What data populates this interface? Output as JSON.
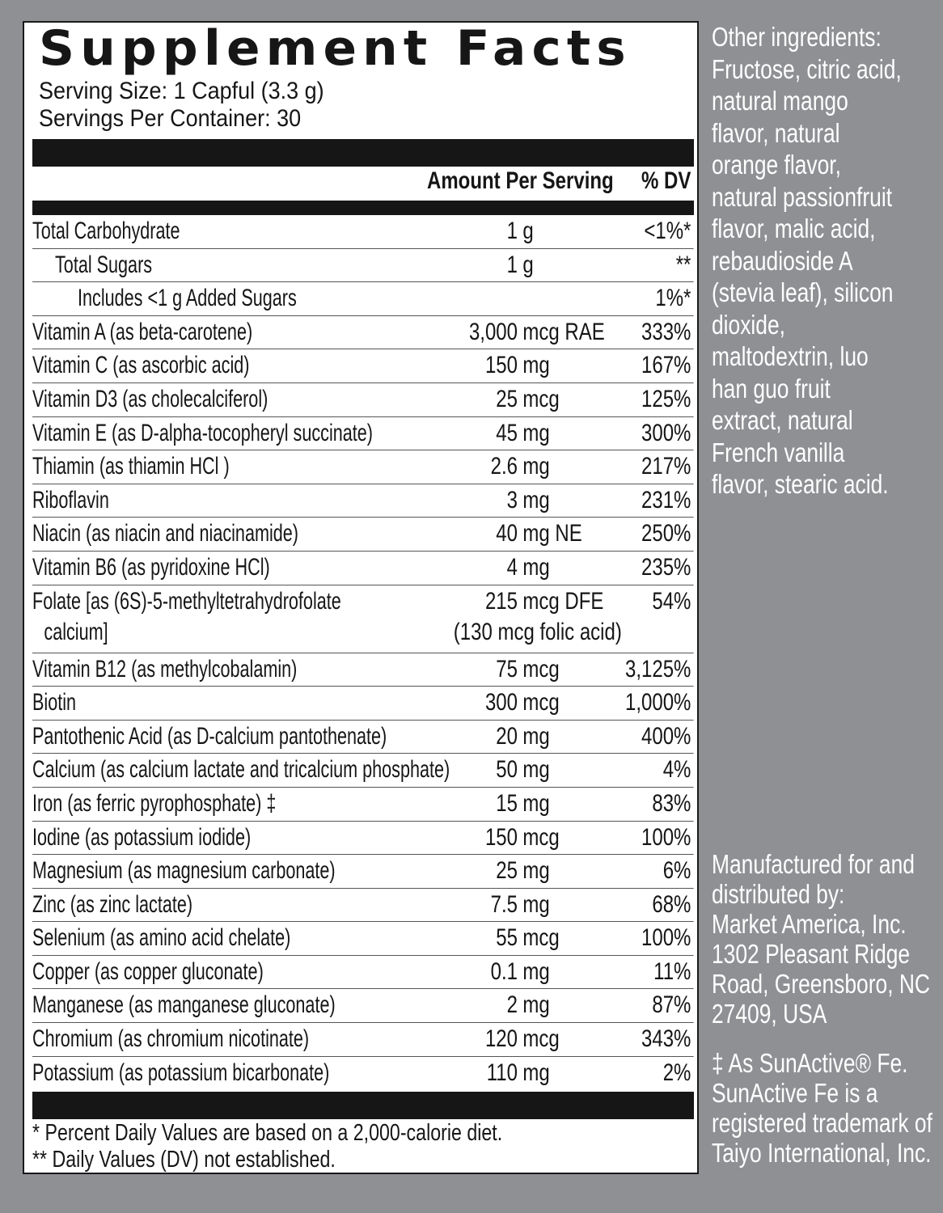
{
  "label": {
    "title": "Supplement Facts",
    "serving_size": "Serving Size: 1 Capful (3.3 g)",
    "servings_per_container": "Servings Per Container: 30",
    "header_amount": "Amount Per Serving",
    "header_dv": "% DV",
    "rows": [
      {
        "name": "Total Carbohydrate",
        "amount": "1 g",
        "dv": "<1%*",
        "indent": 0
      },
      {
        "name": "Total Sugars",
        "amount": "1 g",
        "dv": "**",
        "indent": 1
      },
      {
        "name": "Includes <1 g Added Sugars",
        "amount": "",
        "dv": "1%*",
        "indent": 2
      },
      {
        "name": "Vitamin A (as beta-carotene)",
        "amount": "3,000 mcg RAE",
        "dv": "333%",
        "indent": 0
      },
      {
        "name": "Vitamin C (as ascorbic acid)",
        "amount": "150 mg",
        "dv": "167%",
        "indent": 0
      },
      {
        "name": "Vitamin D3 (as cholecalciferol)",
        "amount": "25 mcg",
        "dv": "125%",
        "indent": 0
      },
      {
        "name": "Vitamin E (as D-alpha-tocopheryl succinate)",
        "amount": "45 mg",
        "dv": "300%",
        "indent": 0
      },
      {
        "name": "Thiamin (as thiamin HCl )",
        "amount": "2.6 mg",
        "dv": "217%",
        "indent": 0
      },
      {
        "name": "Riboflavin",
        "amount": "3 mg",
        "dv": "231%",
        "indent": 0
      },
      {
        "name": "Niacin (as niacin and niacinamide)",
        "amount": "40 mg NE",
        "dv": "250%",
        "indent": 0
      },
      {
        "name": "Vitamin B6 (as pyridoxine HCl)",
        "amount": "4 mg",
        "dv": "235%",
        "indent": 0
      },
      {
        "name": "Folate [as (6S)-5-methyltetrahydrofolate",
        "name2": "calcium]",
        "amount": "215 mcg DFE",
        "amount_note": "(130 mcg folic acid)",
        "dv": "54%",
        "indent": 0
      },
      {
        "name": "Vitamin B12 (as methylcobalamin)",
        "amount": "75 mcg",
        "dv": "3,125%",
        "indent": 0
      },
      {
        "name": "Biotin",
        "amount": "300 mcg",
        "dv": "1,000%",
        "indent": 0
      },
      {
        "name": "Pantothenic Acid (as D-calcium pantothenate)",
        "amount": "20 mg",
        "dv": "400%",
        "indent": 0
      },
      {
        "name": "Calcium (as calcium lactate and tricalcium phosphate)",
        "amount": "50 mg",
        "dv": "4%",
        "indent": 0
      },
      {
        "name": "Iron  (as ferric pyrophosphate) ‡",
        "amount": "15 mg",
        "dv": "83%",
        "indent": 0
      },
      {
        "name": "Iodine (as potassium iodide)",
        "amount": "150 mcg",
        "dv": "100%",
        "indent": 0
      },
      {
        "name": "Magnesium (as magnesium carbonate)",
        "amount": "25 mg",
        "dv": "6%",
        "indent": 0
      },
      {
        "name": "Zinc (as zinc lactate)",
        "amount": "7.5 mg",
        "dv": "68%",
        "indent": 0
      },
      {
        "name": "Selenium (as amino acid chelate)",
        "amount": "55 mcg",
        "dv": "100%",
        "indent": 0
      },
      {
        "name": "Copper (as copper gluconate)",
        "amount": "0.1 mg",
        "dv": "11%",
        "indent": 0
      },
      {
        "name": "Manganese (as manganese gluconate)",
        "amount": "2 mg",
        "dv": "87%",
        "indent": 0
      },
      {
        "name": "Chromium (as chromium nicotinate)",
        "amount": "120 mcg",
        "dv": "343%",
        "indent": 0
      },
      {
        "name": "Potassium (as potassium bicarbonate)",
        "amount": "110 mg",
        "dv": "2%",
        "indent": 0
      }
    ],
    "footnote_1": " * Percent Daily Values are based on a 2,000-calorie diet.",
    "footnote_2": "** Daily Values (DV) not established."
  },
  "side": {
    "other_ingredients": [
      "Other ingredients:",
      "Fructose, citric acid,",
      "natural mango",
      "flavor, natural",
      "orange flavor,",
      "natural passionfruit",
      "flavor, malic acid,",
      "rebaudioside A",
      "(stevia leaf), silicon",
      "dioxide,",
      "maltodextrin, luo",
      "han guo fruit",
      "extract, natural",
      "French vanilla",
      "flavor, stearic acid."
    ],
    "manufacturer": [
      "Manufactured for and",
      "distributed by:",
      "Market America, Inc.",
      "1302 Pleasant Ridge",
      "Road, Greensboro, NC",
      "27409, USA"
    ],
    "trademark": [
      "‡ As SunActive® Fe.",
      "SunActive Fe is a",
      "registered trademark of",
      "Taiyo International, Inc."
    ]
  },
  "colors": {
    "background": "#8f9094",
    "panel": "#ffffff",
    "ink": "#161616",
    "side_text": "#ffffff"
  }
}
